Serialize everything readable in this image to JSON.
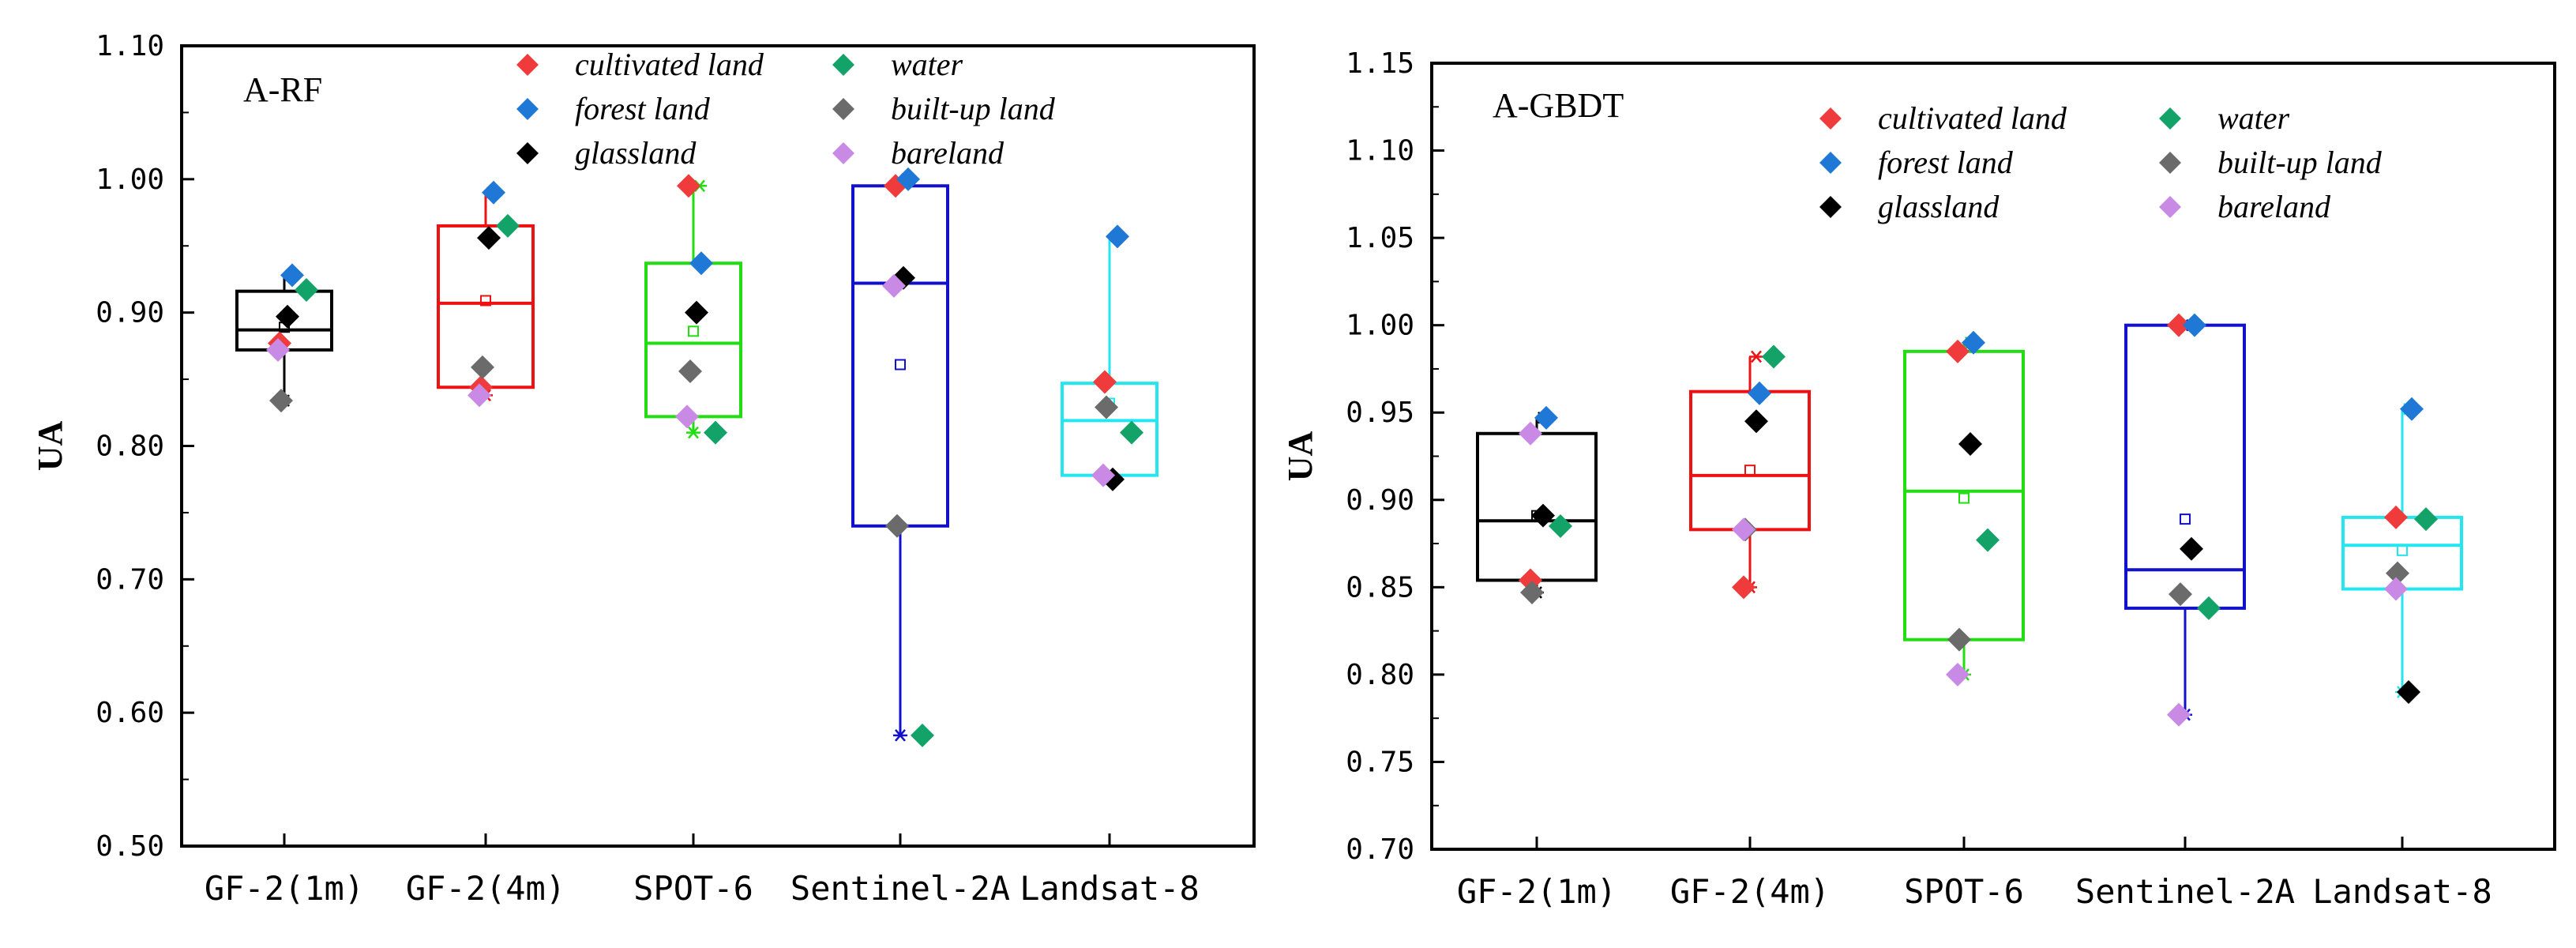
{
  "categories": [
    "GF-2(1m)",
    "GF-2(4m)",
    "SPOT-6",
    "Sentinel-2A",
    "Landsat-8"
  ],
  "classes": [
    {
      "key": "cultivated",
      "name": "cultivated land",
      "color": "#ef3b3b"
    },
    {
      "key": "water",
      "name": "water",
      "color": "#13a368"
    },
    {
      "key": "forest",
      "name": "forest land",
      "color": "#1f78d6"
    },
    {
      "key": "builtup",
      "name": "built-up land",
      "color": "#6b6b6b"
    },
    {
      "key": "grass",
      "name": "glassland",
      "color": "#000000"
    },
    {
      "key": "bare",
      "name": "bareland",
      "color": "#c98ae6"
    }
  ],
  "box_colors": [
    "#000000",
    "#ee1111",
    "#22dd11",
    "#1111cc",
    "#22e6f0"
  ],
  "chart_data": [
    {
      "type": "box",
      "title": "A-RF",
      "ylabel": "UA",
      "ylim": [
        0.5,
        1.1
      ],
      "yticks": [
        0.5,
        0.6,
        0.7,
        0.8,
        0.9,
        1.0,
        1.1
      ],
      "ytick_labels": [
        "0.50",
        "0.60",
        "0.70",
        "0.80",
        "0.90",
        "1.00",
        "1.10"
      ],
      "boxes": [
        {
          "category": "GF-2(1m)",
          "q1": 0.872,
          "median": 0.887,
          "q3": 0.916,
          "mean": 0.889,
          "whisker_low": 0.834,
          "whisker_high": 0.928
        },
        {
          "category": "GF-2(4m)",
          "q1": 0.844,
          "median": 0.907,
          "q3": 0.965,
          "mean": 0.909,
          "whisker_low": 0.838,
          "whisker_high": 0.99
        },
        {
          "category": "SPOT-6",
          "q1": 0.822,
          "median": 0.877,
          "q3": 0.937,
          "mean": 0.886,
          "whisker_low": 0.81,
          "whisker_high": 0.995
        },
        {
          "category": "Sentinel-2A",
          "q1": 0.74,
          "median": 0.922,
          "q3": 0.995,
          "mean": 0.861,
          "whisker_low": 0.583,
          "whisker_high": 1.0
        },
        {
          "category": "Landsat-8",
          "q1": 0.778,
          "median": 0.819,
          "q3": 0.847,
          "mean": 0.832,
          "whisker_low": 0.775,
          "whisker_high": 0.957
        }
      ],
      "series": [
        {
          "class": "cultivated",
          "values": [
            0.877,
            0.844,
            0.995,
            0.995,
            0.848
          ]
        },
        {
          "class": "water",
          "values": [
            0.917,
            0.965,
            0.81,
            0.583,
            0.81
          ]
        },
        {
          "class": "forest",
          "values": [
            0.928,
            0.99,
            0.937,
            1.0,
            0.957
          ]
        },
        {
          "class": "builtup",
          "values": [
            0.834,
            0.859,
            0.856,
            0.74,
            0.829
          ]
        },
        {
          "class": "grass",
          "values": [
            0.897,
            0.956,
            0.9,
            0.926,
            0.775
          ]
        },
        {
          "class": "bare",
          "values": [
            0.872,
            0.838,
            0.822,
            0.92,
            0.778
          ]
        }
      ]
    },
    {
      "type": "box",
      "title": "A-GBDT",
      "ylabel": "UA",
      "ylim": [
        0.7,
        1.15
      ],
      "yticks": [
        0.7,
        0.75,
        0.8,
        0.85,
        0.9,
        0.95,
        1.0,
        1.05,
        1.1,
        1.15
      ],
      "ytick_labels": [
        "0.70",
        "0.75",
        "0.80",
        "0.85",
        "0.90",
        "0.95",
        "1.00",
        "1.05",
        "1.10",
        "1.15"
      ],
      "boxes": [
        {
          "category": "GF-2(1m)",
          "q1": 0.854,
          "median": 0.888,
          "q3": 0.938,
          "mean": 0.891,
          "whisker_low": 0.847,
          "whisker_high": 0.947
        },
        {
          "category": "GF-2(4m)",
          "q1": 0.883,
          "median": 0.914,
          "q3": 0.962,
          "mean": 0.917,
          "whisker_low": 0.85,
          "whisker_high": 0.982
        },
        {
          "category": "SPOT-6",
          "q1": 0.82,
          "median": 0.905,
          "q3": 0.985,
          "mean": 0.901,
          "whisker_low": 0.8,
          "whisker_high": 0.99
        },
        {
          "category": "Sentinel-2A",
          "q1": 0.838,
          "median": 0.86,
          "q3": 1.0,
          "mean": 0.889,
          "whisker_low": 0.777,
          "whisker_high": 1.0
        },
        {
          "category": "Landsat-8",
          "q1": 0.849,
          "median": 0.874,
          "q3": 0.89,
          "mean": 0.871,
          "whisker_low": 0.79,
          "whisker_high": 0.952
        }
      ],
      "series": [
        {
          "class": "cultivated",
          "values": [
            0.854,
            0.85,
            0.985,
            1.0,
            0.89
          ]
        },
        {
          "class": "water",
          "values": [
            0.885,
            0.982,
            0.877,
            0.838,
            0.889
          ]
        },
        {
          "class": "forest",
          "values": [
            0.947,
            0.961,
            0.99,
            1.0,
            0.952
          ]
        },
        {
          "class": "builtup",
          "values": [
            0.847,
            0.883,
            0.82,
            0.846,
            0.858
          ]
        },
        {
          "class": "grass",
          "values": [
            0.891,
            0.945,
            0.932,
            0.872,
            0.79
          ]
        },
        {
          "class": "bare",
          "values": [
            0.938,
            0.883,
            0.8,
            0.777,
            0.849
          ]
        }
      ]
    }
  ]
}
